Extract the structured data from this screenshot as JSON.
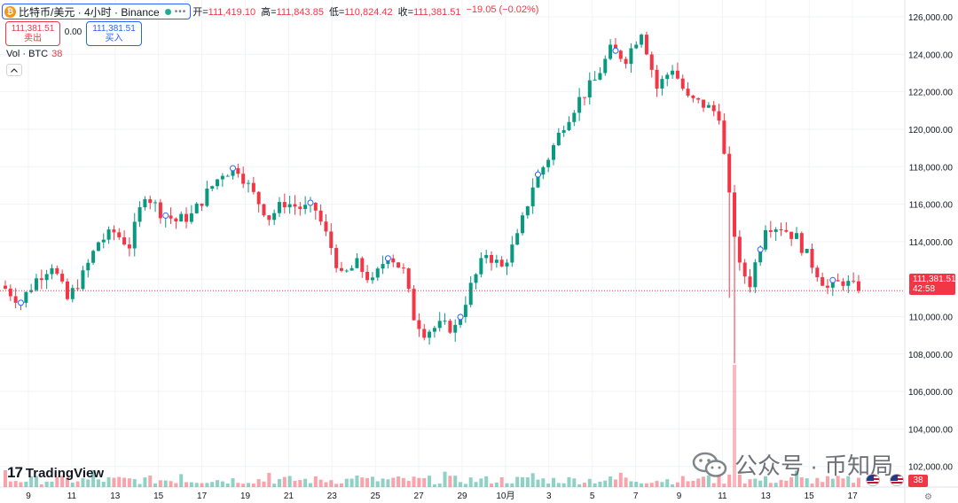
{
  "header": {
    "symbol_title": "比特币/美元 · 4小时 · Binance",
    "ohlc": [
      {
        "label": "开=",
        "value": "111,419.10"
      },
      {
        "label": "高=",
        "value": "111,843.85"
      },
      {
        "label": "低=",
        "value": "110,824.42"
      },
      {
        "label": "收=",
        "value": "111,381.51"
      },
      {
        "label": "",
        "value": "−19.05 (−0.02%)"
      }
    ]
  },
  "trade": {
    "sell_price": "111,381.51",
    "sell_label": "卖出",
    "spread": "0.00",
    "buy_price": "111,381.51",
    "buy_label": "买入"
  },
  "volume_legend": {
    "label": "Vol · BTC",
    "value": "38"
  },
  "last_price": {
    "price": "111,381.51",
    "countdown": "42:58"
  },
  "logo": {
    "mark": "17",
    "text": "TradingView"
  },
  "watermark": {
    "text": "公众号 · 币知局"
  },
  "event_badge": "38",
  "colors": {
    "up": "#089981",
    "down": "#f23645",
    "grid": "#f0f3fa",
    "accent": "#2962ff"
  },
  "chart_data": {
    "type": "candlestick",
    "interval": "4h",
    "y_ticks": [
      "126,000.00",
      "124,000.00",
      "122,000.00",
      "120,000.00",
      "118,000.00",
      "116,000.00",
      "114,000.00",
      "112,000.00",
      "110,000.00",
      "108,000.00",
      "106,000.00",
      "104,000.00",
      "102,000.00"
    ],
    "ylim": [
      100900,
      126900
    ],
    "x_ticks": [
      "9",
      "11",
      "13",
      "15",
      "17",
      "19",
      "21",
      "23",
      "25",
      "27",
      "29",
      "10月",
      "3",
      "5",
      "7",
      "9",
      "11",
      "13",
      "15",
      "17"
    ],
    "close_path": [
      [
        0,
        111500
      ],
      [
        3,
        110800
      ],
      [
        6,
        112000
      ],
      [
        9,
        112800
      ],
      [
        12,
        110900
      ],
      [
        15,
        112200
      ],
      [
        18,
        114000
      ],
      [
        21,
        114500
      ],
      [
        24,
        113800
      ],
      [
        27,
        116600
      ],
      [
        30,
        115600
      ],
      [
        33,
        115100
      ],
      [
        36,
        115400
      ],
      [
        39,
        116600
      ],
      [
        42,
        117700
      ],
      [
        45,
        117900
      ],
      [
        48,
        116500
      ],
      [
        51,
        115300
      ],
      [
        54,
        116100
      ],
      [
        57,
        115800
      ],
      [
        60,
        115700
      ],
      [
        63,
        113700
      ],
      [
        65,
        112100
      ],
      [
        68,
        112800
      ],
      [
        71,
        111800
      ],
      [
        74,
        113400
      ],
      [
        77,
        112400
      ],
      [
        79,
        110000
      ],
      [
        81,
        109200
      ],
      [
        84,
        109500
      ],
      [
        87,
        109400
      ],
      [
        90,
        111600
      ],
      [
        93,
        113400
      ],
      [
        96,
        112600
      ],
      [
        99,
        114200
      ],
      [
        102,
        117000
      ],
      [
        105,
        118500
      ],
      [
        108,
        120300
      ],
      [
        111,
        121600
      ],
      [
        114,
        122600
      ],
      [
        117,
        124200
      ],
      [
        120,
        123800
      ],
      [
        123,
        125300
      ],
      [
        126,
        122200
      ],
      [
        129,
        123300
      ],
      [
        132,
        121600
      ],
      [
        135,
        121300
      ],
      [
        138,
        120800
      ],
      [
        140,
        116300
      ],
      [
        142,
        112600
      ],
      [
        144,
        111800
      ],
      [
        147,
        114900
      ],
      [
        150,
        114800
      ],
      [
        153,
        114200
      ],
      [
        156,
        112800
      ],
      [
        159,
        111500
      ],
      [
        162,
        111900
      ],
      [
        165,
        111381.51
      ]
    ],
    "volume_spike": {
      "date": "11",
      "value": "peak"
    },
    "last_close": 111381.51
  }
}
